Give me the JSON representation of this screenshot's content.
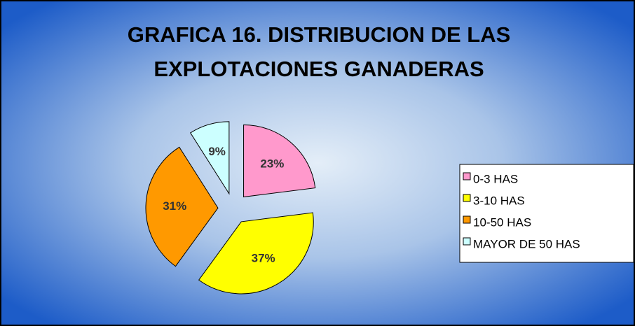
{
  "chart_data": {
    "type": "pie",
    "title": [
      "GRAFICA 16.  DISTRIBUCION DE LAS",
      "EXPLOTACIONES GANADERAS"
    ],
    "categories": [
      "0-3 HAS",
      "3-10 HAS",
      "10-50 HAS",
      "MAYOR DE 50 HAS"
    ],
    "values": [
      23,
      37,
      31,
      9
    ],
    "value_labels": [
      "23%",
      "37%",
      "31%",
      "9%"
    ],
    "colors": [
      "#ff99cc",
      "#ffff00",
      "#ff9900",
      "#ccffff"
    ],
    "exploded": true,
    "legend": "right"
  }
}
